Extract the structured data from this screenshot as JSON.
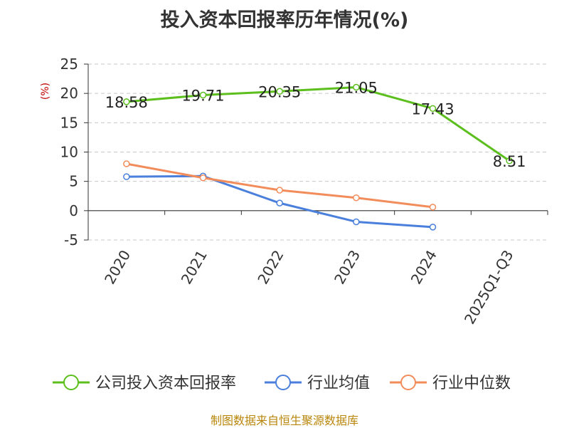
{
  "chart_data": {
    "type": "line",
    "title": "投入资本回报率历年情况(%)",
    "ylabel": "(%)",
    "ylim": [
      -5,
      25
    ],
    "yticks": [
      -5,
      0,
      5,
      10,
      15,
      20,
      25
    ],
    "categories": [
      "2020",
      "2021",
      "2022",
      "2023",
      "2024",
      "2025Q1-Q3"
    ],
    "grid": true,
    "legend_position": "bottom",
    "series": [
      {
        "name": "公司投入资本回报率",
        "color": "#5cbf1e",
        "values": [
          18.58,
          19.71,
          20.35,
          21.05,
          17.43,
          8.51
        ],
        "show_labels": true
      },
      {
        "name": "行业均值",
        "color": "#4a7fdb",
        "values": [
          5.8,
          5.9,
          1.3,
          -1.9,
          -2.8,
          null
        ],
        "show_labels": false
      },
      {
        "name": "行业中位数",
        "color": "#f28c5a",
        "values": [
          8.0,
          5.6,
          3.5,
          2.2,
          0.6,
          null
        ],
        "show_labels": false
      }
    ]
  },
  "source": "制图数据来自恒生聚源数据库"
}
